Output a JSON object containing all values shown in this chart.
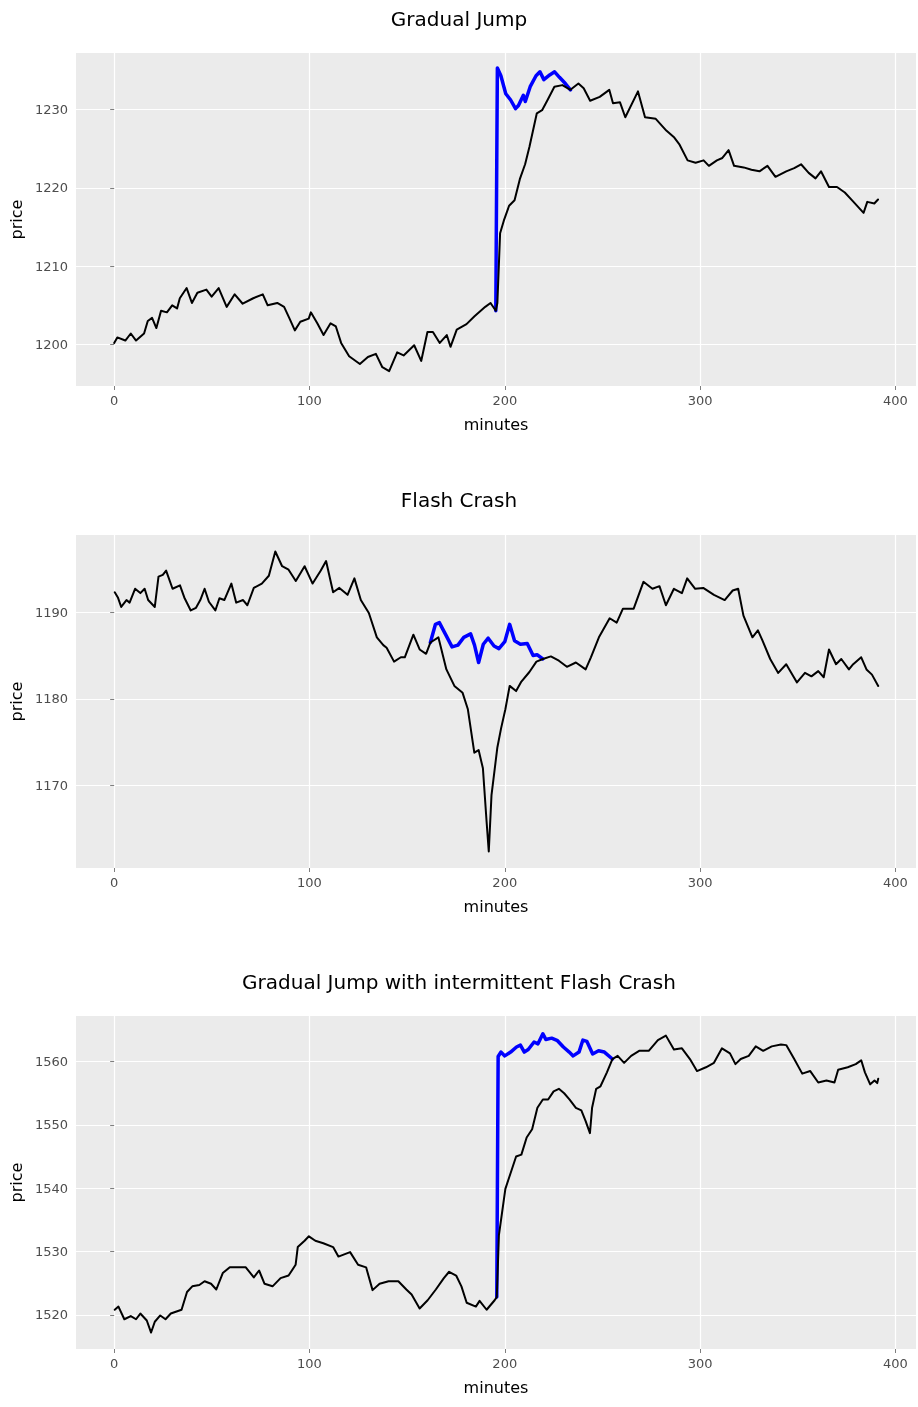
{
  "chart_data": [
    {
      "type": "line",
      "title": "Gradual Jump",
      "xlabel": "minutes",
      "ylabel": "price",
      "xlim": [
        -19.55,
        410.55
      ],
      "xticks": [
        0,
        100,
        200,
        300,
        400
      ],
      "ylim": [
        1194.7,
        1237.2
      ],
      "yticks": [
        1200,
        1210,
        1220,
        1230
      ],
      "grid": true,
      "marker": "none",
      "line_style": "solid",
      "series": [
        {
          "color": "#0000ff",
          "x": [
            195.4,
            196.2,
            198,
            200.5,
            203,
            205.5,
            207,
            209.5,
            210.5,
            213,
            216,
            218,
            220,
            223,
            225.5,
            228,
            231,
            233.6
          ],
          "values": [
            1204.3,
            1235.3,
            1234.3,
            1232.0,
            1231.2,
            1230.1,
            1230.5,
            1231.8,
            1231.0,
            1232.9,
            1234.3,
            1234.8,
            1233.8,
            1234.4,
            1234.8,
            1234.1,
            1233.3,
            1232.5
          ]
        },
        {
          "color": "#000000",
          "x": [
            0,
            1.6,
            5.7,
            8.5,
            11.2,
            15.3,
            17.2,
            19.4,
            21.6,
            24,
            27,
            29.7,
            32.2,
            33.6,
            37.1,
            39.8,
            42.6,
            47.2,
            49.9,
            53.5,
            57.6,
            61.7,
            65.8,
            71.2,
            76.1,
            78.6,
            83.5,
            87,
            89.8,
            92.5,
            95.3,
            99.6,
            100.7,
            104,
            107.2,
            110.8,
            113.5,
            116.2,
            120.3,
            125.8,
            129.9,
            134,
            137.3,
            140.8,
            144.9,
            148.2,
            153.6,
            157.2,
            160.4,
            163.2,
            166.7,
            170.3,
            172.2,
            175.4,
            180.4,
            184.5,
            190,
            192.7,
            195.4,
            196.2,
            197.6,
            199.5,
            202.2,
            205,
            207.7,
            210.4,
            212.6,
            216.4,
            219.1,
            221.9,
            225.4,
            229.5,
            233.6,
            237.7,
            240.4,
            243.7,
            248.6,
            253.5,
            255.4,
            259,
            261.7,
            268.2,
            271.8,
            277.3,
            282.7,
            286.8,
            289.5,
            293.6,
            297.7,
            301.8,
            304.5,
            308.6,
            311.4,
            314.6,
            317.4,
            322.3,
            326.3,
            330.4,
            334.5,
            338.6,
            344.1,
            348.2,
            351.7,
            355.6,
            359.1,
            361.9,
            366,
            370.1,
            374.1,
            378.2,
            383.7,
            385.6,
            389.2,
            391.1
          ],
          "values": [
            1200.2,
            1200.9,
            1200.5,
            1201.4,
            1200.5,
            1201.4,
            1203.0,
            1203.4,
            1202.1,
            1204.3,
            1204.1,
            1205.0,
            1204.6,
            1205.9,
            1207.2,
            1205.3,
            1206.6,
            1207.0,
            1206.1,
            1207.2,
            1204.8,
            1206.4,
            1205.2,
            1205.9,
            1206.4,
            1205.0,
            1205.3,
            1204.8,
            1203.3,
            1201.8,
            1202.9,
            1203.3,
            1204.1,
            1202.7,
            1201.2,
            1202.7,
            1202.3,
            1200.2,
            1198.5,
            1197.5,
            1198.4,
            1198.8,
            1197.1,
            1196.6,
            1199.0,
            1198.6,
            1199.9,
            1197.9,
            1201.6,
            1201.6,
            1200.2,
            1201.2,
            1199.7,
            1201.9,
            1202.6,
            1203.6,
            1204.8,
            1205.3,
            1204.3,
            1205.3,
            1214.2,
            1215.8,
            1217.7,
            1218.4,
            1221.1,
            1223.0,
            1225.2,
            1229.5,
            1229.9,
            1231.2,
            1232.9,
            1233.1,
            1232.5,
            1233.3,
            1232.7,
            1231.1,
            1231.6,
            1232.5,
            1230.8,
            1230.9,
            1229.0,
            1232.3,
            1229.0,
            1228.8,
            1227.3,
            1226.4,
            1225.5,
            1223.5,
            1223.2,
            1223.5,
            1222.8,
            1223.5,
            1223.8,
            1224.8,
            1222.8,
            1222.6,
            1222.3,
            1222.1,
            1222.8,
            1221.4,
            1222.1,
            1222.5,
            1223.0,
            1221.9,
            1221.2,
            1222.1,
            1220.1,
            1220.1,
            1219.4,
            1218.3,
            1216.8,
            1218.2,
            1218.0,
            1218.5
          ]
        }
      ]
    },
    {
      "type": "line",
      "title": "Flash Crash",
      "xlabel": "minutes",
      "ylabel": "price",
      "xlim": [
        -19.55,
        410.55
      ],
      "xticks": [
        0,
        100,
        200,
        300,
        400
      ],
      "ylim": [
        1160.5,
        1198.9
      ],
      "yticks": [
        1170,
        1180,
        1190
      ],
      "grid": true,
      "marker": "none",
      "line_style": "solid",
      "series": [
        {
          "color": "#0000ff",
          "x": [
            161.9,
            164.5,
            166.5,
            170,
            173,
            176,
            179,
            182.5,
            184.5,
            186.6,
            189,
            191.5,
            194.5,
            197,
            200,
            202.5,
            205,
            208,
            211.5,
            214.5,
            216.5,
            219.5
          ],
          "values": [
            1186.5,
            1188.6,
            1188.8,
            1187.3,
            1186.0,
            1186.2,
            1187.1,
            1187.5,
            1186.2,
            1184.2,
            1186.3,
            1187.0,
            1186.1,
            1185.8,
            1186.6,
            1188.6,
            1186.7,
            1186.3,
            1186.4,
            1185.0,
            1185.1,
            1184.6
          ]
        },
        {
          "color": "#000000",
          "x": [
            0.3,
            1.9,
            3.6,
            6.3,
            7.9,
            10.7,
            13.4,
            15.6,
            17.4,
            20.8,
            22.7,
            24.9,
            26.6,
            29.9,
            33.7,
            35.9,
            39.2,
            41.9,
            44.1,
            46.3,
            48.5,
            51.8,
            53.9,
            56.4,
            60,
            62.5,
            66,
            68.2,
            71.5,
            75.6,
            79.2,
            82.5,
            86,
            89.3,
            93,
            97.5,
            101.6,
            105.8,
            108.5,
            112.1,
            115.3,
            119.5,
            123,
            126.3,
            130.4,
            134.5,
            137.8,
            139.5,
            143.3,
            146.8,
            148.8,
            153.2,
            156.4,
            159.7,
            161.9,
            166,
            170.1,
            174.2,
            178.4,
            181.1,
            184.4,
            186.6,
            188.8,
            190.7,
            191.8,
            193.2,
            196.2,
            198.1,
            200.3,
            202.5,
            205.8,
            208.5,
            212.6,
            216.2,
            219.5,
            223.6,
            227.7,
            231.8,
            236.4,
            241.4,
            244.1,
            248.2,
            253.7,
            257.3,
            260.5,
            266,
            271,
            275.6,
            279.2,
            282.5,
            286.6,
            290.7,
            293.4,
            297.5,
            301.6,
            307.1,
            312.6,
            316.7,
            319.5,
            322.2,
            326.8,
            329.6,
            331.8,
            335.9,
            340,
            344.1,
            349.6,
            353.7,
            357,
            360.5,
            363.3,
            366,
            369.6,
            372.3,
            376.2,
            378.4,
            382.5,
            385.2,
            388,
            391.2
          ],
          "values": [
            1192.3,
            1191.7,
            1190.6,
            1191.4,
            1191.1,
            1192.7,
            1192.2,
            1192.7,
            1191.4,
            1190.6,
            1194.1,
            1194.3,
            1194.8,
            1192.7,
            1193.1,
            1191.7,
            1190.2,
            1190.5,
            1191.4,
            1192.7,
            1191.2,
            1190.2,
            1191.6,
            1191.4,
            1193.3,
            1191.1,
            1191.4,
            1190.8,
            1192.8,
            1193.3,
            1194.2,
            1197.0,
            1195.3,
            1194.9,
            1193.6,
            1195.3,
            1193.3,
            1194.8,
            1195.9,
            1192.3,
            1192.8,
            1192.0,
            1193.9,
            1191.4,
            1189.9,
            1187.1,
            1186.2,
            1185.9,
            1184.3,
            1184.8,
            1184.8,
            1187.4,
            1185.7,
            1185.2,
            1186.5,
            1187.1,
            1183.4,
            1181.5,
            1180.7,
            1178.8,
            1173.8,
            1174.1,
            1172.0,
            1165.8,
            1162.4,
            1168.9,
            1174.4,
            1176.6,
            1178.8,
            1181.5,
            1180.9,
            1182.0,
            1183.1,
            1184.3,
            1184.6,
            1184.9,
            1184.4,
            1183.7,
            1184.2,
            1183.4,
            1184.8,
            1187.1,
            1189.3,
            1188.8,
            1190.4,
            1190.4,
            1193.5,
            1192.7,
            1193.0,
            1190.8,
            1192.7,
            1192.2,
            1193.9,
            1192.7,
            1192.8,
            1192.0,
            1191.4,
            1192.5,
            1192.7,
            1189.6,
            1187.1,
            1187.9,
            1186.8,
            1184.6,
            1183.0,
            1184.0,
            1181.9,
            1183.0,
            1182.6,
            1183.2,
            1182.5,
            1185.7,
            1184.0,
            1184.6,
            1183.4,
            1184.0,
            1184.8,
            1183.4,
            1182.8,
            1181.5
          ]
        }
      ]
    },
    {
      "type": "line",
      "title": "Gradual Jump with intermittent Flash Crash",
      "xlabel": "minutes",
      "ylabel": "price",
      "xlim": [
        -19.55,
        410.55
      ],
      "xticks": [
        0,
        100,
        200,
        300,
        400
      ],
      "ylim": [
        1514.6,
        1567.2
      ],
      "yticks": [
        1520,
        1530,
        1540,
        1550,
        1560
      ],
      "grid": true,
      "marker": "none",
      "line_style": "solid",
      "series": [
        {
          "color": "#0000ff",
          "x": [
            195.9,
            196.6,
            198,
            200,
            203,
            206,
            208,
            210,
            212,
            215,
            217,
            219.5,
            221,
            224,
            227,
            230,
            233,
            235,
            238,
            240,
            242,
            245,
            248,
            251,
            255.1
          ],
          "values": [
            1522.8,
            1560.8,
            1561.5,
            1560.9,
            1561.5,
            1562.3,
            1562.6,
            1561.5,
            1561.9,
            1563.1,
            1562.8,
            1564.4,
            1563.5,
            1563.7,
            1563.3,
            1562.3,
            1561.5,
            1560.9,
            1561.5,
            1563.4,
            1563.2,
            1561.2,
            1561.7,
            1561.5,
            1560.4
          ]
        },
        {
          "color": "#000000",
          "x": [
            0.3,
            2.2,
            5.2,
            8.5,
            11.2,
            13.4,
            16.7,
            18.9,
            20.8,
            23.6,
            26.3,
            29,
            34.5,
            37.3,
            40,
            43.6,
            46.3,
            49.6,
            52.3,
            55.6,
            59.2,
            62.7,
            67.4,
            71.5,
            74.2,
            77,
            81.1,
            85.2,
            89.3,
            92.9,
            94,
            97.5,
            99.7,
            103,
            107.1,
            112.1,
            114.8,
            120.8,
            124.9,
            129,
            132.3,
            135.9,
            140.5,
            145.5,
            149.6,
            152.3,
            156.4,
            160.5,
            164.7,
            168.8,
            171.5,
            175.1,
            177.8,
            180.5,
            185.2,
            187.1,
            190.7,
            194.8,
            195.9,
            197,
            200.3,
            203,
            205.8,
            208.5,
            211.2,
            214,
            216.7,
            219.5,
            222.2,
            225,
            227.7,
            230.4,
            233.2,
            236.4,
            239.2,
            241.4,
            243.6,
            244.7,
            246.8,
            249,
            252.3,
            255.1,
            257.8,
            261.1,
            264.7,
            268.8,
            273.7,
            278.4,
            282.5,
            286.6,
            290.7,
            294.8,
            298.4,
            303,
            307.1,
            311.2,
            315.3,
            318.1,
            320.8,
            324.9,
            328.5,
            332.3,
            336.7,
            341.4,
            344.1,
            348.2,
            352.3,
            356.4,
            360.5,
            364.7,
            368.8,
            370.7,
            375.6,
            379.7,
            382.5,
            384.4,
            387.1,
            389.3,
            390.7,
            391.2
          ],
          "values": [
            1520.8,
            1521.3,
            1519.3,
            1519.8,
            1519.3,
            1520.2,
            1519.1,
            1517.2,
            1518.9,
            1519.9,
            1519.3,
            1520.2,
            1520.8,
            1523.6,
            1524.5,
            1524.7,
            1525.3,
            1524.9,
            1524.0,
            1526.6,
            1527.5,
            1527.5,
            1527.5,
            1525.9,
            1527.0,
            1524.9,
            1524.5,
            1525.8,
            1526.2,
            1527.9,
            1530.7,
            1531.7,
            1532.4,
            1531.7,
            1531.3,
            1530.7,
            1529.2,
            1529.9,
            1527.9,
            1527.5,
            1523.9,
            1524.9,
            1525.3,
            1525.3,
            1524.0,
            1523.2,
            1521.0,
            1522.3,
            1524.0,
            1525.8,
            1526.8,
            1526.2,
            1524.5,
            1521.9,
            1521.3,
            1522.2,
            1520.8,
            1522.3,
            1522.8,
            1532.6,
            1539.9,
            1542.4,
            1545.0,
            1545.3,
            1548.0,
            1549.3,
            1552.7,
            1554.0,
            1554.0,
            1555.3,
            1555.7,
            1555.0,
            1554.0,
            1552.7,
            1552.3,
            1550.6,
            1548.7,
            1552.7,
            1555.7,
            1556.1,
            1558.3,
            1560.4,
            1560.9,
            1559.8,
            1560.9,
            1561.7,
            1561.7,
            1563.4,
            1564.1,
            1561.9,
            1562.1,
            1560.4,
            1558.5,
            1559.1,
            1559.8,
            1562.1,
            1561.3,
            1559.6,
            1560.4,
            1560.9,
            1562.4,
            1561.7,
            1562.4,
            1562.7,
            1562.6,
            1560.4,
            1558.1,
            1558.5,
            1556.7,
            1557.0,
            1556.7,
            1558.7,
            1559.1,
            1559.6,
            1560.2,
            1558.3,
            1556.4,
            1557.0,
            1556.6,
            1557.3
          ]
        }
      ]
    }
  ]
}
